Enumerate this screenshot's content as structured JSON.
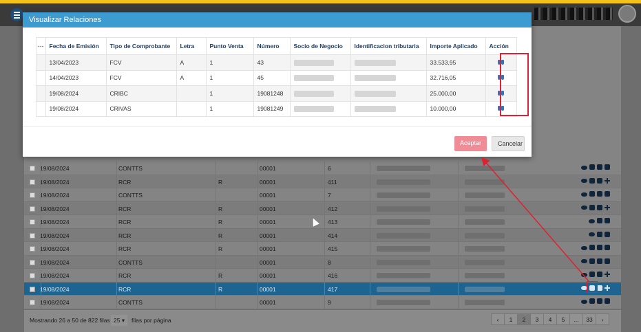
{
  "topbar": {
    "menu_icon": "hamburger-icon",
    "avatar_icon": "user-avatar-icon",
    "accent_color": "#f3c318"
  },
  "modal": {
    "title": "Visualizar Relaciones",
    "columns": [
      "Fecha de Emisión",
      "Tipo de Comprobante",
      "Letra",
      "Punto Venta",
      "Número",
      "Socio de Negocio",
      "Identificacion tributaria",
      "Importe Aplicado",
      "Acción"
    ],
    "rows": [
      {
        "fecha": "13/04/2023",
        "tipo": "FCV",
        "letra": "A",
        "punto": "1",
        "numero": "43",
        "importe": "33.533,95"
      },
      {
        "fecha": "14/04/2023",
        "tipo": "FCV",
        "letra": "A",
        "punto": "1",
        "numero": "45",
        "importe": "32.716,05"
      },
      {
        "fecha": "19/08/2024",
        "tipo": "CRIBC",
        "letra": "",
        "punto": "1",
        "numero": "19081248",
        "importe": "25.000,00"
      },
      {
        "fecha": "19/08/2024",
        "tipo": "CRIVAS",
        "letra": "",
        "punto": "1",
        "numero": "19081249",
        "importe": "10.000,00"
      }
    ],
    "action_icon": "binoculars-icon",
    "accept_label": "Aceptar",
    "cancel_label": "Cancelar",
    "header_color": "#3c9bd1",
    "accept_color": "#f08c96"
  },
  "grid": {
    "rows": [
      {
        "fecha": "19/08/2024",
        "tipo": "CONTTS",
        "letra": "",
        "punto": "00001",
        "numero": "6",
        "actions": [
          "eye",
          "card",
          "print",
          "book"
        ]
      },
      {
        "fecha": "19/08/2024",
        "tipo": "RCR",
        "letra": "R",
        "punto": "00001",
        "numero": "411",
        "actions": [
          "eye",
          "edit",
          "card",
          "plus"
        ]
      },
      {
        "fecha": "19/08/2024",
        "tipo": "CONTTS",
        "letra": "",
        "punto": "00001",
        "numero": "7",
        "actions": [
          "eye",
          "card",
          "print",
          "book"
        ]
      },
      {
        "fecha": "19/08/2024",
        "tipo": "RCR",
        "letra": "R",
        "punto": "00001",
        "numero": "412",
        "actions": [
          "eye",
          "edit",
          "card",
          "plus"
        ]
      },
      {
        "fecha": "19/08/2024",
        "tipo": "RCR",
        "letra": "R",
        "punto": "00001",
        "numero": "413",
        "actions": [
          "eye",
          "print",
          "book"
        ]
      },
      {
        "fecha": "19/08/2024",
        "tipo": "RCR",
        "letra": "R",
        "punto": "00001",
        "numero": "414",
        "actions": [
          "eye",
          "print",
          "book"
        ]
      },
      {
        "fecha": "19/08/2024",
        "tipo": "RCR",
        "letra": "R",
        "punto": "00001",
        "numero": "415",
        "actions": [
          "eye",
          "card",
          "print",
          "book"
        ]
      },
      {
        "fecha": "19/08/2024",
        "tipo": "CONTTS",
        "letra": "",
        "punto": "00001",
        "numero": "8",
        "actions": [
          "eye",
          "card",
          "print",
          "book"
        ]
      },
      {
        "fecha": "19/08/2024",
        "tipo": "RCR",
        "letra": "R",
        "punto": "00001",
        "numero": "416",
        "actions": [
          "eye",
          "edit",
          "card",
          "plus"
        ]
      },
      {
        "fecha": "19/08/2024",
        "tipo": "RCR",
        "letra": "R",
        "punto": "00001",
        "numero": "417",
        "actions": [
          "eye",
          "edit",
          "card",
          "plus"
        ],
        "selected": true
      },
      {
        "fecha": "19/08/2024",
        "tipo": "CONTTS",
        "letra": "",
        "punto": "00001",
        "numero": "9",
        "actions": [
          "eye",
          "card",
          "print",
          "book"
        ]
      }
    ],
    "selected_color": "#1d6491"
  },
  "footer": {
    "info": "Mostrando 26 a 50 de 822 filas",
    "page_size": "25",
    "per_page": "filas por página",
    "pages": [
      "‹",
      "1",
      "2",
      "3",
      "4",
      "5",
      "...",
      "33",
      "›"
    ],
    "active_page": "2"
  },
  "annotation_color": "#e0202e"
}
